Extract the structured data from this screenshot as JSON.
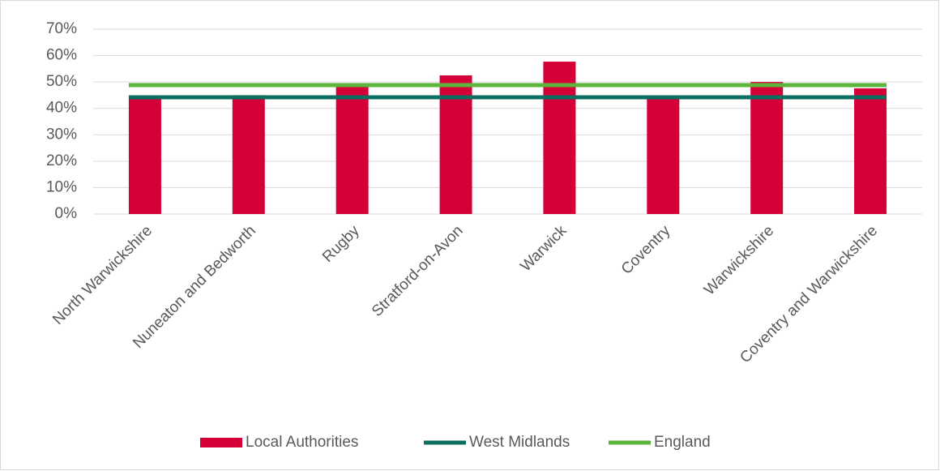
{
  "chart_data": {
    "type": "bar",
    "categories": [
      "North Warwickshire",
      "Nuneaton and Bedworth",
      "Rugby",
      "Stratford-on-Avon",
      "Warwick",
      "Coventry",
      "Warwickshire",
      "Coventry and Warwickshire"
    ],
    "series": [
      {
        "name": "Local Authorities",
        "type": "bar",
        "color": "#d40037",
        "values": [
          44.5,
          45,
          49,
          52.5,
          57.7,
          44.5,
          50,
          47.6
        ]
      },
      {
        "name": "West Midlands",
        "type": "line",
        "color": "#0b6e5f",
        "values": [
          44.2,
          44.2,
          44.2,
          44.2,
          44.2,
          44.2,
          44.2,
          44.2
        ]
      },
      {
        "name": "England",
        "type": "line",
        "color": "#5db53c",
        "values": [
          48.8,
          48.8,
          48.8,
          48.8,
          48.8,
          48.8,
          48.8,
          48.8
        ]
      }
    ],
    "ylim": [
      0,
      70
    ],
    "yticks": [
      {
        "value": 0,
        "label": "0%"
      },
      {
        "value": 10,
        "label": "10%"
      },
      {
        "value": 20,
        "label": "20%"
      },
      {
        "value": 30,
        "label": "30%"
      },
      {
        "value": 40,
        "label": "40%"
      },
      {
        "value": 50,
        "label": "50%"
      },
      {
        "value": 60,
        "label": "60%"
      },
      {
        "value": 70,
        "label": "70%"
      }
    ],
    "grid": true,
    "legend": "bottom"
  }
}
